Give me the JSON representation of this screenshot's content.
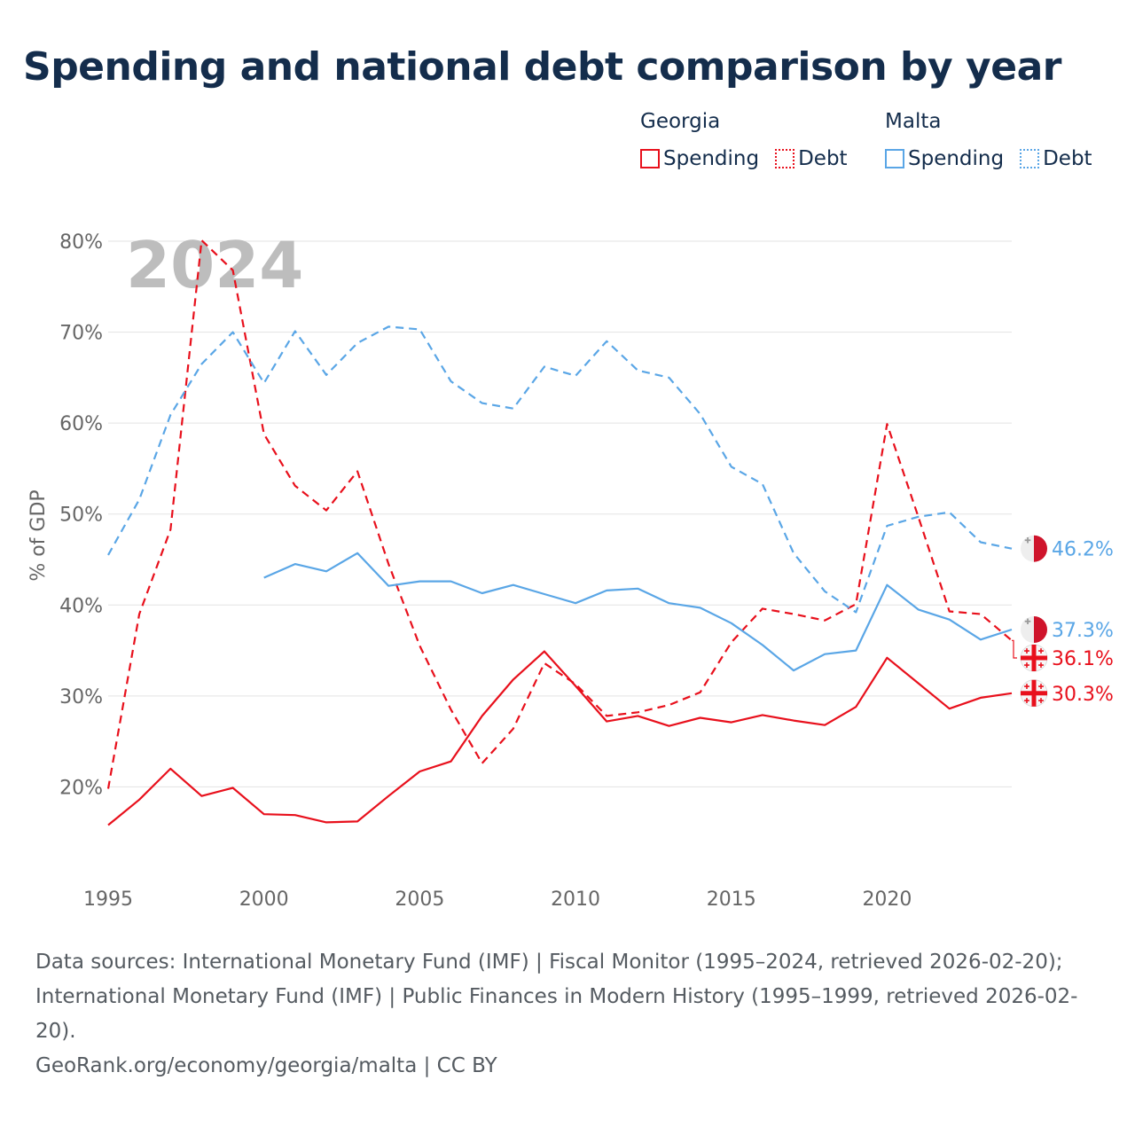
{
  "title": "Spending and national debt comparison by year",
  "legend": {
    "groups": [
      {
        "country": "Georgia",
        "spending_label": "Spending",
        "debt_label": "Debt",
        "color": "#e8101c"
      },
      {
        "country": "Malta",
        "spending_label": "Spending",
        "debt_label": "Debt",
        "color": "#5aa6e6"
      }
    ]
  },
  "chart_data": {
    "type": "line",
    "watermark_year": "2024",
    "ylabel": "% of GDP",
    "xlabel": "",
    "xlim": [
      1995,
      2024
    ],
    "ylim": [
      10,
      80
    ],
    "x_ticks": [
      1995,
      2000,
      2005,
      2010,
      2015,
      2020
    ],
    "y_ticks": [
      20,
      30,
      40,
      50,
      60,
      70,
      80
    ],
    "y_tick_labels": [
      "20%",
      "30%",
      "40%",
      "50%",
      "60%",
      "70%",
      "80%"
    ],
    "grid": true,
    "series": [
      {
        "name": "Georgia Spending",
        "country": "Georgia",
        "style": "solid",
        "color": "#e8101c",
        "x": [
          1995,
          1996,
          1997,
          1998,
          1999,
          2000,
          2001,
          2002,
          2003,
          2004,
          2005,
          2006,
          2007,
          2008,
          2009,
          2010,
          2011,
          2012,
          2013,
          2014,
          2015,
          2016,
          2017,
          2018,
          2019,
          2020,
          2021,
          2022,
          2023,
          2024
        ],
        "values": [
          15.8,
          18.6,
          22.0,
          19.0,
          19.9,
          17.0,
          16.9,
          16.1,
          16.2,
          19.0,
          21.7,
          22.8,
          27.8,
          31.8,
          34.9,
          31.1,
          27.2,
          27.8,
          26.7,
          27.6,
          27.1,
          27.9,
          27.3,
          26.8,
          28.8,
          34.2,
          31.4,
          28.6,
          29.8,
          30.3
        ],
        "end_label": "30.3%"
      },
      {
        "name": "Georgia Debt",
        "country": "Georgia",
        "style": "dashed",
        "color": "#e8101c",
        "x": [
          1995,
          1996,
          1997,
          1998,
          1999,
          2000,
          2001,
          2002,
          2003,
          2004,
          2005,
          2006,
          2007,
          2008,
          2009,
          2010,
          2011,
          2012,
          2013,
          2014,
          2015,
          2016,
          2017,
          2018,
          2019,
          2020,
          2021,
          2022,
          2023,
          2024
        ],
        "values": [
          19.8,
          39.0,
          48.3,
          80.1,
          76.8,
          58.8,
          53.1,
          50.4,
          54.7,
          44.5,
          35.5,
          28.5,
          22.6,
          26.4,
          33.6,
          31.3,
          27.8,
          28.2,
          29.0,
          30.4,
          35.9,
          39.6,
          39.0,
          38.3,
          40.1,
          59.9,
          49.7,
          39.3,
          39.0,
          36.1
        ],
        "end_label": "36.1%"
      },
      {
        "name": "Malta Spending",
        "country": "Malta",
        "style": "solid",
        "color": "#5aa6e6",
        "x": [
          2000,
          2001,
          2002,
          2003,
          2004,
          2005,
          2006,
          2007,
          2008,
          2009,
          2010,
          2011,
          2012,
          2013,
          2014,
          2015,
          2016,
          2017,
          2018,
          2019,
          2020,
          2021,
          2022,
          2023,
          2024
        ],
        "values": [
          43.0,
          44.5,
          43.7,
          45.7,
          42.1,
          42.6,
          42.6,
          41.3,
          42.2,
          41.2,
          40.2,
          41.6,
          41.8,
          40.2,
          39.7,
          38.0,
          35.6,
          32.8,
          34.6,
          35.0,
          42.2,
          39.5,
          38.4,
          36.2,
          37.3
        ],
        "end_label": "37.3%"
      },
      {
        "name": "Malta Debt",
        "country": "Malta",
        "style": "dashed",
        "color": "#5aa6e6",
        "x": [
          1995,
          1996,
          1997,
          1998,
          1999,
          2000,
          2001,
          2002,
          2003,
          2004,
          2005,
          2006,
          2007,
          2008,
          2009,
          2010,
          2011,
          2012,
          2013,
          2014,
          2015,
          2016,
          2017,
          2018,
          2019,
          2020,
          2021,
          2022,
          2023,
          2024
        ],
        "values": [
          45.5,
          51.6,
          60.9,
          66.5,
          70.0,
          64.4,
          70.1,
          65.3,
          68.8,
          70.6,
          70.3,
          64.6,
          62.2,
          61.6,
          66.2,
          65.2,
          69.0,
          65.8,
          65.0,
          61.0,
          55.2,
          53.3,
          45.7,
          41.5,
          39.2,
          48.7,
          49.7,
          50.2,
          46.9,
          46.2
        ],
        "end_label": "46.2%"
      }
    ]
  },
  "footer": {
    "sources": "Data sources: International Monetary Fund (IMF) | Fiscal Monitor (1995–2024, retrieved 2026-02-20); International Monetary Fund (IMF) | Public Finances in Modern History (1995–1999, retrieved 2026-02-20).",
    "credit": "GeoRank.org/economy/georgia/malta | CC BY"
  }
}
